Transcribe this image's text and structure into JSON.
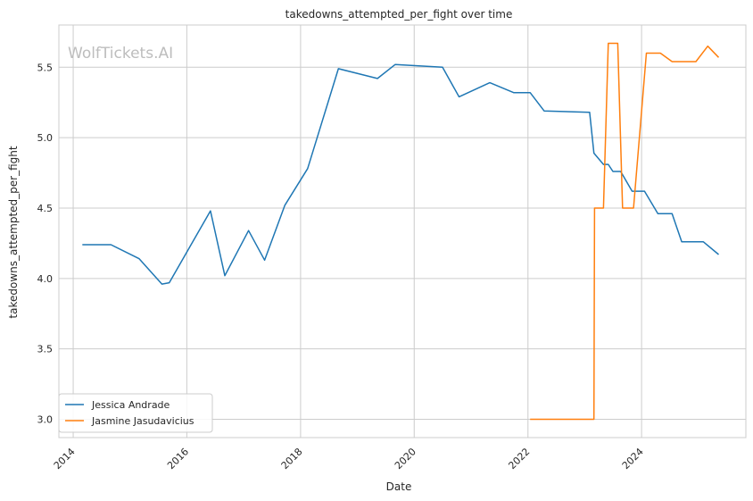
{
  "watermark": "WolfTickets.AI",
  "chart_data": {
    "type": "line",
    "title": "takedowns_attempted_per_fight over time",
    "xlabel": "Date",
    "ylabel": "takedowns_attempted_per_fight",
    "xlim": [
      "2013-10-01",
      "2025-11-01"
    ],
    "ylim": [
      2.87,
      5.8
    ],
    "xticks": [
      "2014",
      "2016",
      "2018",
      "2020",
      "2022",
      "2024"
    ],
    "yticks": [
      "3.0",
      "3.5",
      "4.0",
      "4.5",
      "5.0",
      "5.5"
    ],
    "grid": true,
    "legend_position": "lower-left",
    "series": [
      {
        "name": "Jessica Andrade",
        "color": "#1f77b4",
        "points": [
          [
            "2014-03-01",
            4.24
          ],
          [
            "2014-09-01",
            4.24
          ],
          [
            "2015-03-01",
            4.14
          ],
          [
            "2015-07-25",
            3.96
          ],
          [
            "2015-09-10",
            3.97
          ],
          [
            "2016-06-01",
            4.48
          ],
          [
            "2016-09-01",
            4.02
          ],
          [
            "2017-02-01",
            4.34
          ],
          [
            "2017-05-15",
            4.13
          ],
          [
            "2017-09-22",
            4.52
          ],
          [
            "2018-02-15",
            4.78
          ],
          [
            "2018-09-01",
            5.49
          ],
          [
            "2019-05-10",
            5.42
          ],
          [
            "2019-09-01",
            5.52
          ],
          [
            "2020-07-01",
            5.5
          ],
          [
            "2020-10-15",
            5.29
          ],
          [
            "2021-05-01",
            5.39
          ],
          [
            "2021-10-01",
            5.32
          ],
          [
            "2022-01-15",
            5.32
          ],
          [
            "2022-04-15",
            5.19
          ],
          [
            "2023-02-01",
            5.18
          ],
          [
            "2023-03-01",
            4.89
          ],
          [
            "2023-05-01",
            4.81
          ],
          [
            "2023-06-01",
            4.81
          ],
          [
            "2023-07-01",
            4.76
          ],
          [
            "2023-08-20",
            4.76
          ],
          [
            "2023-11-01",
            4.62
          ],
          [
            "2024-01-20",
            4.62
          ],
          [
            "2024-04-15",
            4.46
          ],
          [
            "2024-07-15",
            4.46
          ],
          [
            "2024-09-15",
            4.26
          ],
          [
            "2025-02-01",
            4.26
          ],
          [
            "2025-05-10",
            4.17
          ]
        ]
      },
      {
        "name": "Jasmine Jasudavicius",
        "color": "#ff7f0e",
        "points": [
          [
            "2022-01-15",
            3.0
          ],
          [
            "2023-03-01",
            3.0
          ],
          [
            "2023-03-05",
            4.5
          ],
          [
            "2023-05-01",
            4.5
          ],
          [
            "2023-06-01",
            5.67
          ],
          [
            "2023-08-01",
            5.67
          ],
          [
            "2023-09-01",
            4.5
          ],
          [
            "2023-11-10",
            4.5
          ],
          [
            "2024-02-01",
            5.6
          ],
          [
            "2024-05-01",
            5.6
          ],
          [
            "2024-07-15",
            5.54
          ],
          [
            "2024-12-15",
            5.54
          ],
          [
            "2025-03-01",
            5.65
          ],
          [
            "2025-05-10",
            5.57
          ]
        ]
      }
    ]
  }
}
